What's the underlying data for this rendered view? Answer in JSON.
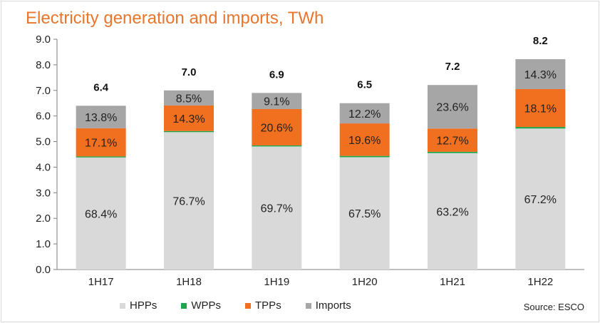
{
  "chart_data": {
    "type": "bar",
    "stacked": true,
    "title": "Electricity generation and imports, TWh",
    "categories": [
      "1H17",
      "1H18",
      "1H19",
      "1H20",
      "1H21",
      "1H22"
    ],
    "totals": [
      "6.4",
      "7.0",
      "6.9",
      "6.5",
      "7.2",
      "8.2"
    ],
    "ylim": [
      0,
      9
    ],
    "yticks": [
      "0.0",
      "1.0",
      "2.0",
      "3.0",
      "4.0",
      "5.0",
      "6.0",
      "7.0",
      "8.0",
      "9.0"
    ],
    "series": [
      {
        "name": "HPPs",
        "color": "#d9d9d9",
        "values": [
          4.38,
          5.37,
          4.81,
          4.39,
          4.55,
          5.51
        ],
        "labels": [
          "68.4%",
          "76.7%",
          "69.7%",
          "67.5%",
          "63.2%",
          "67.2%"
        ]
      },
      {
        "name": "WPPs",
        "color": "#1aa64a",
        "values": [
          0.04,
          0.04,
          0.04,
          0.05,
          0.05,
          0.06
        ],
        "labels": [
          "",
          "",
          "",
          "",
          "",
          ""
        ]
      },
      {
        "name": "TPPs",
        "color": "#f07020",
        "values": [
          1.1,
          1.0,
          1.42,
          1.27,
          0.91,
          1.48
        ],
        "labels": [
          "17.1%",
          "14.3%",
          "20.6%",
          "19.6%",
          "12.7%",
          "18.1%"
        ]
      },
      {
        "name": "Imports",
        "color": "#a6a6a6",
        "values": [
          0.88,
          0.59,
          0.63,
          0.79,
          1.7,
          1.17
        ],
        "labels": [
          "13.8%",
          "8.5%",
          "9.1%",
          "12.2%",
          "23.6%",
          "14.3%"
        ]
      }
    ],
    "legend_position": "bottom",
    "grid": false
  },
  "source": "Source: ESCO"
}
